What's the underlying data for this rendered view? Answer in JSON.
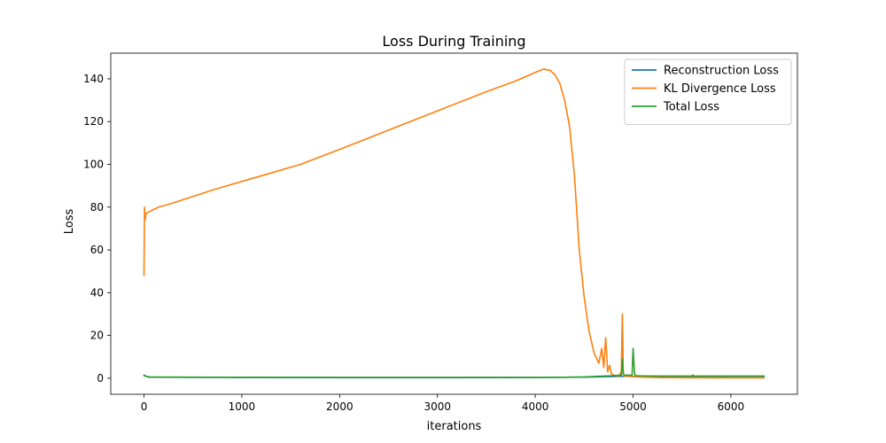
{
  "chart_data": {
    "type": "line",
    "title": "Loss During Training",
    "xlabel": "iterations",
    "ylabel": "Loss",
    "xlim": [
      -340,
      6680
    ],
    "ylim": [
      -7.5,
      152
    ],
    "xticks": [
      0,
      1000,
      2000,
      3000,
      4000,
      5000,
      6000
    ],
    "yticks": [
      0,
      20,
      40,
      60,
      80,
      100,
      120,
      140
    ],
    "legend_position": "upper right",
    "grid": false,
    "series": [
      {
        "name": "Reconstruction Loss",
        "color": "#1f77b4",
        "x": [
          0,
          50,
          500,
          1000,
          2000,
          3000,
          4000,
          4500,
          4800,
          4900,
          5000,
          5200,
          6000,
          6340
        ],
        "y": [
          1.2,
          0.5,
          0.4,
          0.35,
          0.3,
          0.3,
          0.35,
          0.5,
          0.8,
          0.9,
          0.9,
          0.8,
          0.8,
          0.8
        ]
      },
      {
        "name": "KL Divergence Loss",
        "color": "#ff7f0e",
        "x": [
          0,
          5,
          12,
          20,
          40,
          80,
          150,
          300,
          500,
          700,
          1000,
          1300,
          1600,
          2000,
          2500,
          3000,
          3500,
          3800,
          4000,
          4080,
          4150,
          4200,
          4250,
          4300,
          4350,
          4400,
          4450,
          4500,
          4550,
          4600,
          4650,
          4680,
          4700,
          4720,
          4740,
          4760,
          4780,
          4800,
          4850,
          4880,
          4890,
          4900,
          4910,
          4930,
          4960,
          5000,
          5050,
          5100,
          5200,
          5300,
          5500,
          6000,
          6340
        ],
        "y": [
          48,
          80,
          74,
          77,
          77.5,
          78.5,
          80,
          82,
          85,
          88,
          92,
          96,
          100,
          107,
          116,
          125,
          134,
          139,
          143,
          144.5,
          144,
          142,
          138,
          130,
          118,
          95,
          60,
          38,
          22,
          12,
          7,
          14,
          5,
          19,
          3,
          6,
          2,
          1.5,
          1,
          3,
          30,
          2,
          1,
          1,
          0.8,
          0.7,
          0.6,
          0.5,
          0.4,
          0.3,
          0.25,
          0.2,
          0.2
        ]
      },
      {
        "name": "Total Loss",
        "color": "#2ca02c",
        "x": [
          0,
          10,
          30,
          60,
          200,
          500,
          1000,
          2000,
          3000,
          4000,
          4300,
          4500,
          4600,
          4700,
          4800,
          4880,
          4890,
          4900,
          4910,
          4950,
          4990,
          5000,
          5005,
          5015,
          5030,
          5100,
          5300,
          5600,
          5610,
          5620,
          6000,
          6340
        ],
        "y": [
          1.5,
          1.2,
          0.8,
          0.6,
          0.55,
          0.5,
          0.45,
          0.4,
          0.4,
          0.4,
          0.45,
          0.6,
          0.8,
          1.0,
          1.2,
          1.4,
          9,
          2,
          1.5,
          1.4,
          1.5,
          14,
          10,
          2,
          1.2,
          1.1,
          1.0,
          1.0,
          1.5,
          1.0,
          1.0,
          1.0
        ]
      }
    ]
  }
}
